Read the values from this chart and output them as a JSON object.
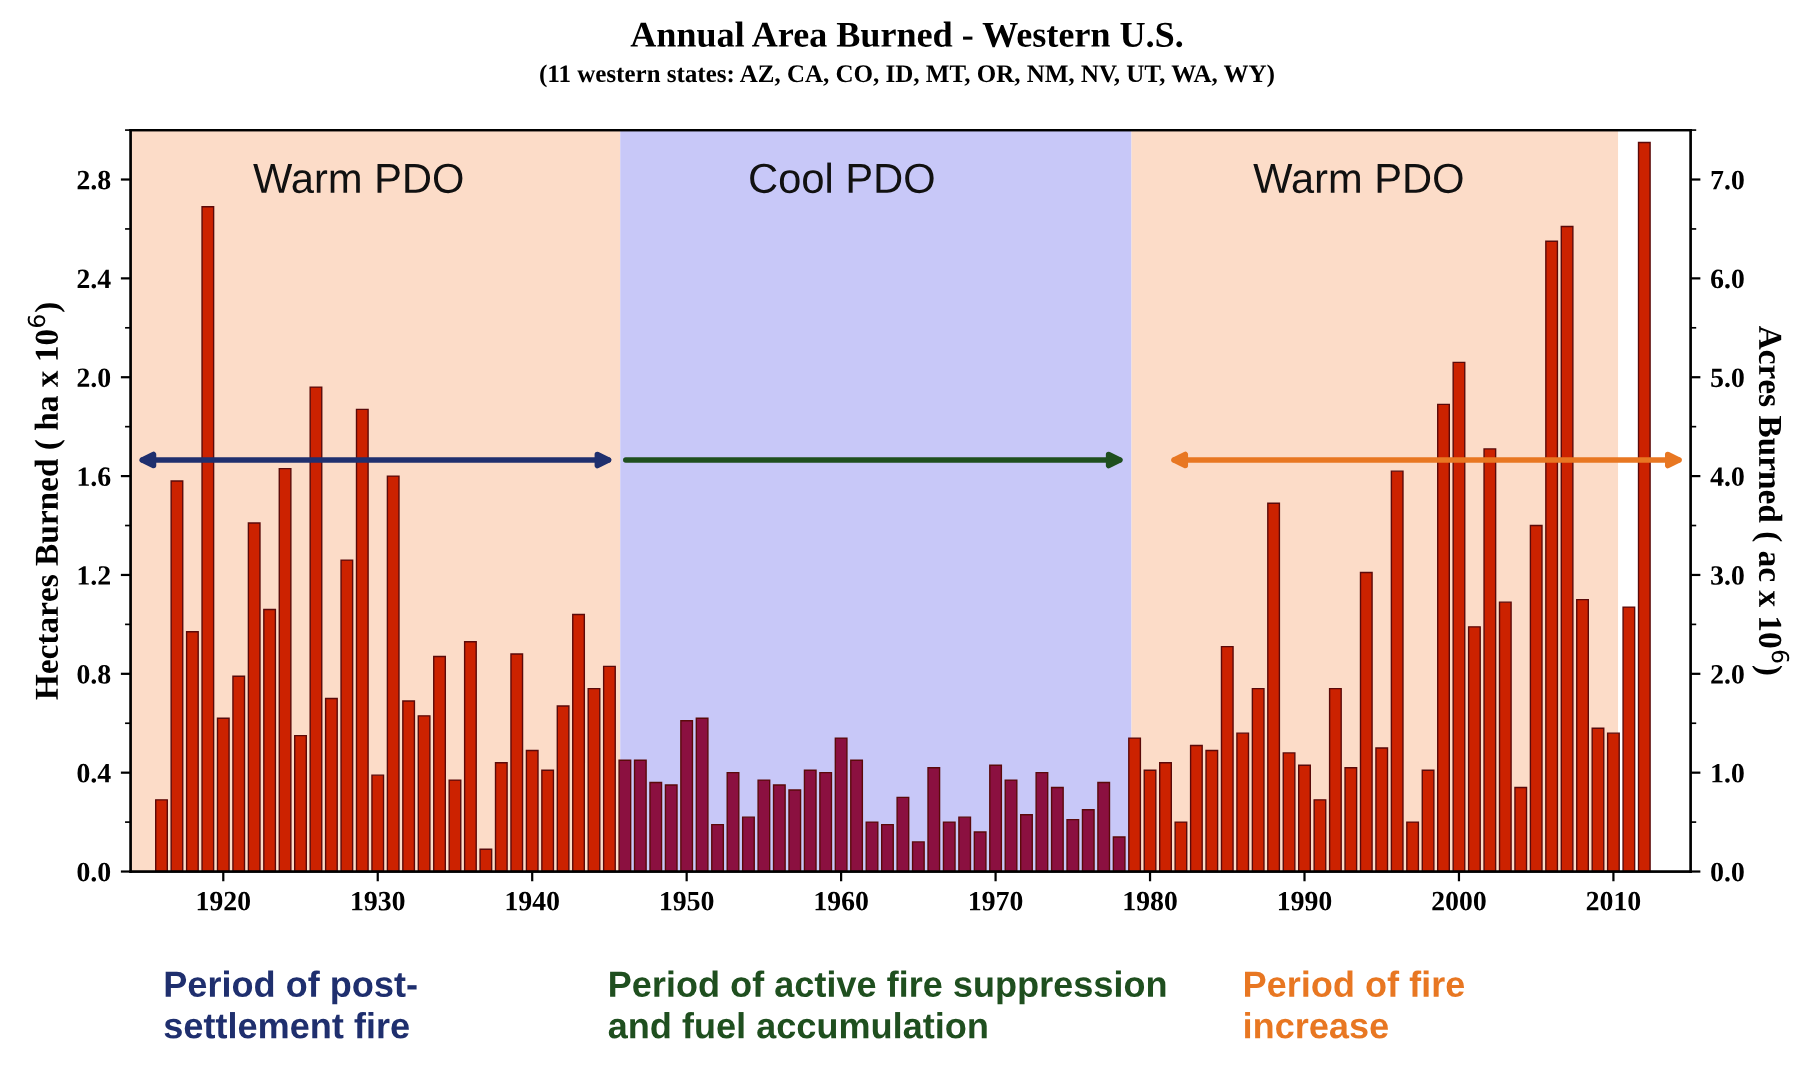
{
  "chart_data": {
    "type": "bar",
    "title": "Annual Area Burned - Western U.S.",
    "subtitle": "(11 western states: AZ, CA, CO, ID, MT, OR, NM, NV, UT, WA, WY)",
    "ylabel": "Hectares Burned ( ha x 10$^{6}$)",
    "y2label": "Acres Burned ( ac x 10$^{6}$)",
    "x": [
      1916,
      1917,
      1918,
      1919,
      1920,
      1921,
      1922,
      1923,
      1924,
      1925,
      1926,
      1927,
      1928,
      1929,
      1930,
      1931,
      1932,
      1933,
      1934,
      1935,
      1936,
      1937,
      1938,
      1939,
      1940,
      1941,
      1942,
      1943,
      1944,
      1945,
      1946,
      1947,
      1948,
      1949,
      1950,
      1951,
      1952,
      1953,
      1954,
      1955,
      1956,
      1957,
      1958,
      1959,
      1960,
      1961,
      1962,
      1963,
      1964,
      1965,
      1966,
      1967,
      1968,
      1969,
      1970,
      1971,
      1972,
      1973,
      1974,
      1975,
      1976,
      1977,
      1978,
      1979,
      1980,
      1981,
      1982,
      1983,
      1984,
      1985,
      1986,
      1987,
      1988,
      1989,
      1990,
      1991,
      1992,
      1993,
      1994,
      1995,
      1996,
      1997,
      1998,
      1999,
      2000,
      2001,
      2002,
      2003,
      2004,
      2005,
      2006,
      2007,
      2008,
      2009,
      2010,
      2011,
      2012
    ],
    "series": [
      {
        "values": [
          0.29,
          1.58,
          0.97,
          2.69,
          0.62,
          0.79,
          1.41,
          1.06,
          1.63,
          0.55,
          1.96,
          0.7,
          1.26,
          1.87,
          0.39,
          1.6,
          0.69,
          0.63,
          0.87,
          0.37,
          0.93,
          0.09,
          0.44,
          0.88,
          0.49,
          0.41,
          0.67,
          1.04,
          0.74,
          0.83,
          0.45,
          0.45,
          0.36,
          0.35,
          0.61,
          0.62,
          0.19,
          0.4,
          0.22,
          0.37,
          0.35,
          0.33,
          0.41,
          0.4,
          0.54,
          0.45,
          0.2,
          0.19,
          0.3,
          0.12,
          0.42,
          0.2,
          0.22,
          0.16,
          0.43,
          0.37,
          0.23,
          0.4,
          0.34,
          0.21,
          0.25,
          0.36,
          0.14,
          0.54,
          0.41,
          0.44,
          0.2,
          0.51,
          0.49,
          0.91,
          0.56,
          0.74,
          1.49,
          0.48,
          0.43,
          0.29,
          0.74,
          0.42,
          1.21,
          0.5,
          1.62,
          0.2,
          0.41,
          1.89,
          2.06,
          0.99,
          1.71,
          1.09,
          0.34,
          1.4,
          2.55,
          2.61,
          1.1,
          0.58,
          0.56,
          1.07,
          2.95
        ],
        "colors": [
          "#cc2200",
          "#cc2200",
          "#cc2200",
          "#cc2200",
          "#cc2200",
          "#cc2200",
          "#cc2200",
          "#cc2200",
          "#cc2200",
          "#cc2200",
          "#cc2200",
          "#cc2200",
          "#cc2200",
          "#cc2200",
          "#cc2200",
          "#cc2200",
          "#cc2200",
          "#cc2200",
          "#cc2200",
          "#cc2200",
          "#cc2200",
          "#cc2200",
          "#cc2200",
          "#cc2200",
          "#cc2200",
          "#cc2200",
          "#cc2200",
          "#cc2200",
          "#cc2200",
          "#cc2200",
          "#8b1040",
          "#8b1040",
          "#8b1040",
          "#8b1040",
          "#8b1040",
          "#8b1040",
          "#8b1040",
          "#8b1040",
          "#8b1040",
          "#8b1040",
          "#8b1040",
          "#8b1040",
          "#8b1040",
          "#8b1040",
          "#8b1040",
          "#8b1040",
          "#8b1040",
          "#8b1040",
          "#8b1040",
          "#8b1040",
          "#8b1040",
          "#8b1040",
          "#8b1040",
          "#8b1040",
          "#8b1040",
          "#8b1040",
          "#8b1040",
          "#8b1040",
          "#8b1040",
          "#8b1040",
          "#8b1040",
          "#8b1040",
          "#8b1040",
          "#cc2200",
          "#cc2200",
          "#cc2200",
          "#cc2200",
          "#cc2200",
          "#cc2200",
          "#cc2200",
          "#cc2200",
          "#cc2200",
          "#cc2200",
          "#cc2200",
          "#cc2200",
          "#cc2200",
          "#cc2200",
          "#cc2200",
          "#cc2200",
          "#cc2200",
          "#cc2200",
          "#cc2200",
          "#cc2200",
          "#cc2200",
          "#cc2200",
          "#cc2200",
          "#cc2200",
          "#cc2200",
          "#cc2200",
          "#cc2200",
          "#cc2200",
          "#cc2200",
          "#cc2200",
          "#cc2200",
          "#cc2200",
          "#cc2200",
          "#cc2200"
        ]
      }
    ],
    "xlim": [
      1914,
      2015
    ],
    "xticks": [
      1920,
      1930,
      1940,
      1950,
      1960,
      1970,
      1980,
      1990,
      2000,
      2010
    ],
    "ylim": [
      0,
      3.0
    ],
    "yticks": [
      {
        "value": 0,
        "label": "0.0"
      },
      {
        "value": 0.4,
        "label": "0.4"
      },
      {
        "value": 0.8,
        "label": "0.8"
      },
      {
        "value": 1.2,
        "label": "1.2"
      },
      {
        "value": 1.6,
        "label": "1.6"
      },
      {
        "value": 2.0,
        "label": "2.0"
      },
      {
        "value": 2.4,
        "label": "2.4"
      },
      {
        "value": 2.8,
        "label": "2.8"
      }
    ],
    "y2lim": [
      0,
      7.5
    ],
    "y2ticks": [
      {
        "value": 0,
        "label": "0.0"
      },
      {
        "value": 1,
        "label": "1.0"
      },
      {
        "value": 2,
        "label": "2.0"
      },
      {
        "value": 3,
        "label": "3.0"
      },
      {
        "value": 4,
        "label": "4.0"
      },
      {
        "value": 5,
        "label": "5.0"
      },
      {
        "value": 6,
        "label": "6.0"
      },
      {
        "value": 7,
        "label": "7.0"
      }
    ],
    "bands": [
      {
        "axis": "x",
        "from": 1914,
        "to": 1945.7,
        "label": "Warm PDO",
        "color": "#fcdcc8"
      },
      {
        "axis": "x",
        "from": 1945.7,
        "to": 1978.8,
        "label": "Cool PDO",
        "color": "#c8c8f8"
      },
      {
        "axis": "x",
        "from": 1978.8,
        "to": 2010.3,
        "label": "Warm PDO",
        "color": "#fcdcc8"
      }
    ],
    "annotations": [
      "Period of post-\nsettlement fire",
      "Period of active fire suppression\nand fuel accumulation",
      "Period of fire\nincrease"
    ],
    "grid": false
  }
}
